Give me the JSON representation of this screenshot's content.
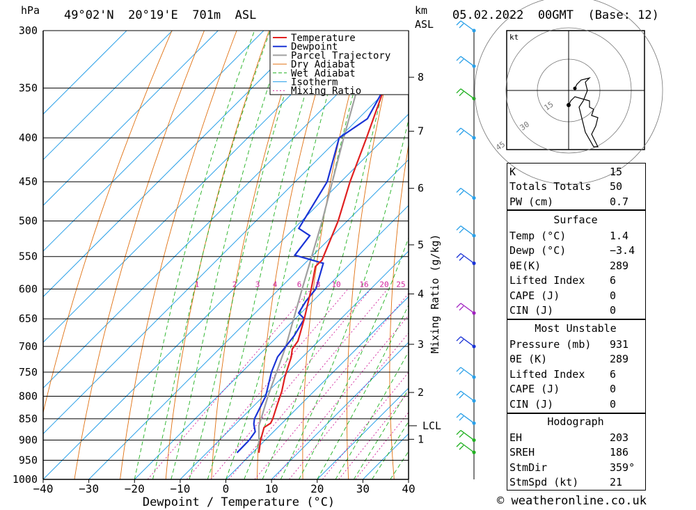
{
  "header": {
    "pressure_unit": "hPa",
    "location": "49°02'N  20°19'E  701m  ASL",
    "height_unit_km": "km",
    "height_unit_asl": "ASL",
    "datetime": "05.02.2022  00GMT  (Base: 12)"
  },
  "footer": {
    "credit": "© weatheronline.co.uk"
  },
  "colors": {
    "temperature": "#e02020",
    "dewpoint": "#1a33d6",
    "parcel": "#a0a0a0",
    "dry_adiabat": "#e07010",
    "wet_adiabat": "#20b020",
    "isotherm": "#2aa0e8",
    "mixing_ratio": "#d0209a"
  },
  "chart_data": {
    "type": "skew-t",
    "xlabel": "Dewpoint / Temperature (°C)",
    "ylabel_right": "Mixing Ratio (g/kg)",
    "x_ticks": [
      -40,
      -30,
      -20,
      -10,
      0,
      10,
      20,
      30,
      40
    ],
    "x_tick_labels": [
      "−40",
      "−30",
      "−20",
      "−10",
      "0",
      "10",
      "20",
      "30",
      "40"
    ],
    "pressure_ticks": [
      300,
      350,
      400,
      450,
      500,
      550,
      600,
      650,
      700,
      750,
      800,
      850,
      900,
      950,
      1000
    ],
    "height_ticks_km": [
      {
        "km": "8",
        "p": 340
      },
      {
        "km": "7",
        "p": 393
      },
      {
        "km": "6",
        "p": 458
      },
      {
        "km": "5",
        "p": 533
      },
      {
        "km": "4",
        "p": 608
      },
      {
        "km": "3",
        "p": 696
      },
      {
        "km": "2",
        "p": 792
      },
      {
        "km": "1",
        "p": 898
      }
    ],
    "lcl_label": "LCL",
    "lcl_pressure": 866,
    "mixing_ratio_labels": [
      "1",
      "2",
      "3",
      "4",
      "6",
      "8",
      "10",
      "16",
      "20",
      "25"
    ],
    "legend": [
      "Temperature",
      "Dewpoint",
      "Parcel Trajectory",
      "Dry Adiabat",
      "Wet Adiabat",
      "Isotherm",
      "Mixing Ratio"
    ],
    "temperature": [
      [
        931,
        1.4
      ],
      [
        900,
        -1.0
      ],
      [
        870,
        -3.0
      ],
      [
        860,
        -2.5
      ],
      [
        850,
        -3.0
      ],
      [
        820,
        -5.0
      ],
      [
        790,
        -7.0
      ],
      [
        760,
        -9.5
      ],
      [
        720,
        -12.5
      ],
      [
        705,
        -14.0
      ],
      [
        690,
        -14.5
      ],
      [
        650,
        -18.0
      ],
      [
        600,
        -23.0
      ],
      [
        565,
        -27.0
      ],
      [
        555,
        -27.0
      ],
      [
        500,
        -32.0
      ],
      [
        450,
        -38.0
      ],
      [
        400,
        -44.0
      ],
      [
        350,
        -51.0
      ],
      [
        335,
        -53.0
      ],
      [
        320,
        -52.0
      ],
      [
        308,
        -50.0
      ],
      [
        300,
        -47.0
      ]
    ],
    "dewpoint": [
      [
        931,
        -3.4
      ],
      [
        900,
        -3.5
      ],
      [
        880,
        -4.0
      ],
      [
        862,
        -6.0
      ],
      [
        850,
        -7.0
      ],
      [
        800,
        -9.5
      ],
      [
        750,
        -13.5
      ],
      [
        720,
        -15.5
      ],
      [
        680,
        -16.5
      ],
      [
        650,
        -18.0
      ],
      [
        640,
        -20.5
      ],
      [
        620,
        -21.5
      ],
      [
        600,
        -22.0
      ],
      [
        560,
        -26.0
      ],
      [
        548,
        -34.0
      ],
      [
        520,
        -35.0
      ],
      [
        510,
        -39.0
      ],
      [
        450,
        -43.0
      ],
      [
        400,
        -50.0
      ],
      [
        395,
        -49.5
      ],
      [
        380,
        -48.0
      ],
      [
        350,
        -51.0
      ],
      [
        320,
        -55.0
      ],
      [
        302,
        -59.0
      ],
      [
        300,
        -62.0
      ]
    ],
    "parcel": [
      [
        931,
        1.4
      ],
      [
        866,
        -4.5
      ],
      [
        800,
        -9.0
      ],
      [
        700,
        -16.0
      ],
      [
        600,
        -25.0
      ],
      [
        500,
        -35.5
      ],
      [
        400,
        -49.0
      ],
      [
        300,
        -66.0
      ]
    ],
    "hodograph": {
      "unit": "kt",
      "ring_labels": [
        "15",
        "30",
        "45"
      ],
      "path_uv": [
        [
          0,
          -7
        ],
        [
          1,
          -5
        ],
        [
          3,
          -3
        ],
        [
          10,
          -5
        ],
        [
          10,
          -8
        ],
        [
          12,
          -9
        ],
        [
          11,
          -12
        ],
        [
          14,
          -13
        ],
        [
          13,
          -17
        ],
        [
          11,
          -21
        ],
        [
          14,
          -27
        ],
        [
          12,
          -27
        ],
        [
          8,
          -20
        ],
        [
          6,
          -12
        ],
        [
          5,
          -8
        ],
        [
          7,
          -5
        ],
        [
          9,
          0
        ],
        [
          8,
          4
        ],
        [
          10,
          6
        ],
        [
          6,
          5
        ],
        [
          4,
          3
        ],
        [
          3,
          1
        ]
      ]
    },
    "wind_profile": [
      {
        "p": 300,
        "color": "#2aa0e8"
      },
      {
        "p": 330,
        "color": "#2aa0e8"
      },
      {
        "p": 360,
        "color": "#20b020"
      },
      {
        "p": 400,
        "color": "#2aa0e8"
      },
      {
        "p": 470,
        "color": "#2aa0e8"
      },
      {
        "p": 520,
        "color": "#2aa0e8"
      },
      {
        "p": 560,
        "color": "#1a33d6"
      },
      {
        "p": 640,
        "color": "#a020c0"
      },
      {
        "p": 700,
        "color": "#1a33d6"
      },
      {
        "p": 760,
        "color": "#2aa0e8"
      },
      {
        "p": 810,
        "color": "#2aa0e8"
      },
      {
        "p": 860,
        "color": "#2aa0e8"
      },
      {
        "p": 900,
        "color": "#20b020"
      },
      {
        "p": 930,
        "color": "#20b020"
      }
    ]
  },
  "indices": {
    "rows": [
      {
        "label": "K",
        "value": "15"
      },
      {
        "label": "Totals Totals",
        "value": "50"
      },
      {
        "label": "PW (cm)",
        "value": "0.7"
      }
    ]
  },
  "surface": {
    "title": "Surface",
    "rows": [
      {
        "label": "Temp (°C)",
        "value": "1.4"
      },
      {
        "label": "Dewp (°C)",
        "value": "−3.4"
      },
      {
        "label": "θE(K)",
        "value": "289"
      },
      {
        "label": "Lifted Index",
        "value": "6"
      },
      {
        "label": "CAPE (J)",
        "value": "0"
      },
      {
        "label": "CIN (J)",
        "value": "0"
      }
    ]
  },
  "most_unstable": {
    "title": "Most Unstable",
    "rows": [
      {
        "label": "Pressure (mb)",
        "value": "931"
      },
      {
        "label": "θE (K)",
        "value": "289"
      },
      {
        "label": "Lifted Index",
        "value": "6"
      },
      {
        "label": "CAPE (J)",
        "value": "0"
      },
      {
        "label": "CIN (J)",
        "value": "0"
      }
    ]
  },
  "hodograph_table": {
    "title": "Hodograph",
    "rows": [
      {
        "label": "EH",
        "value": "203"
      },
      {
        "label": "SREH",
        "value": "186"
      },
      {
        "label": "StmDir",
        "value": "359°"
      },
      {
        "label": "StmSpd (kt)",
        "value": "21"
      }
    ]
  }
}
